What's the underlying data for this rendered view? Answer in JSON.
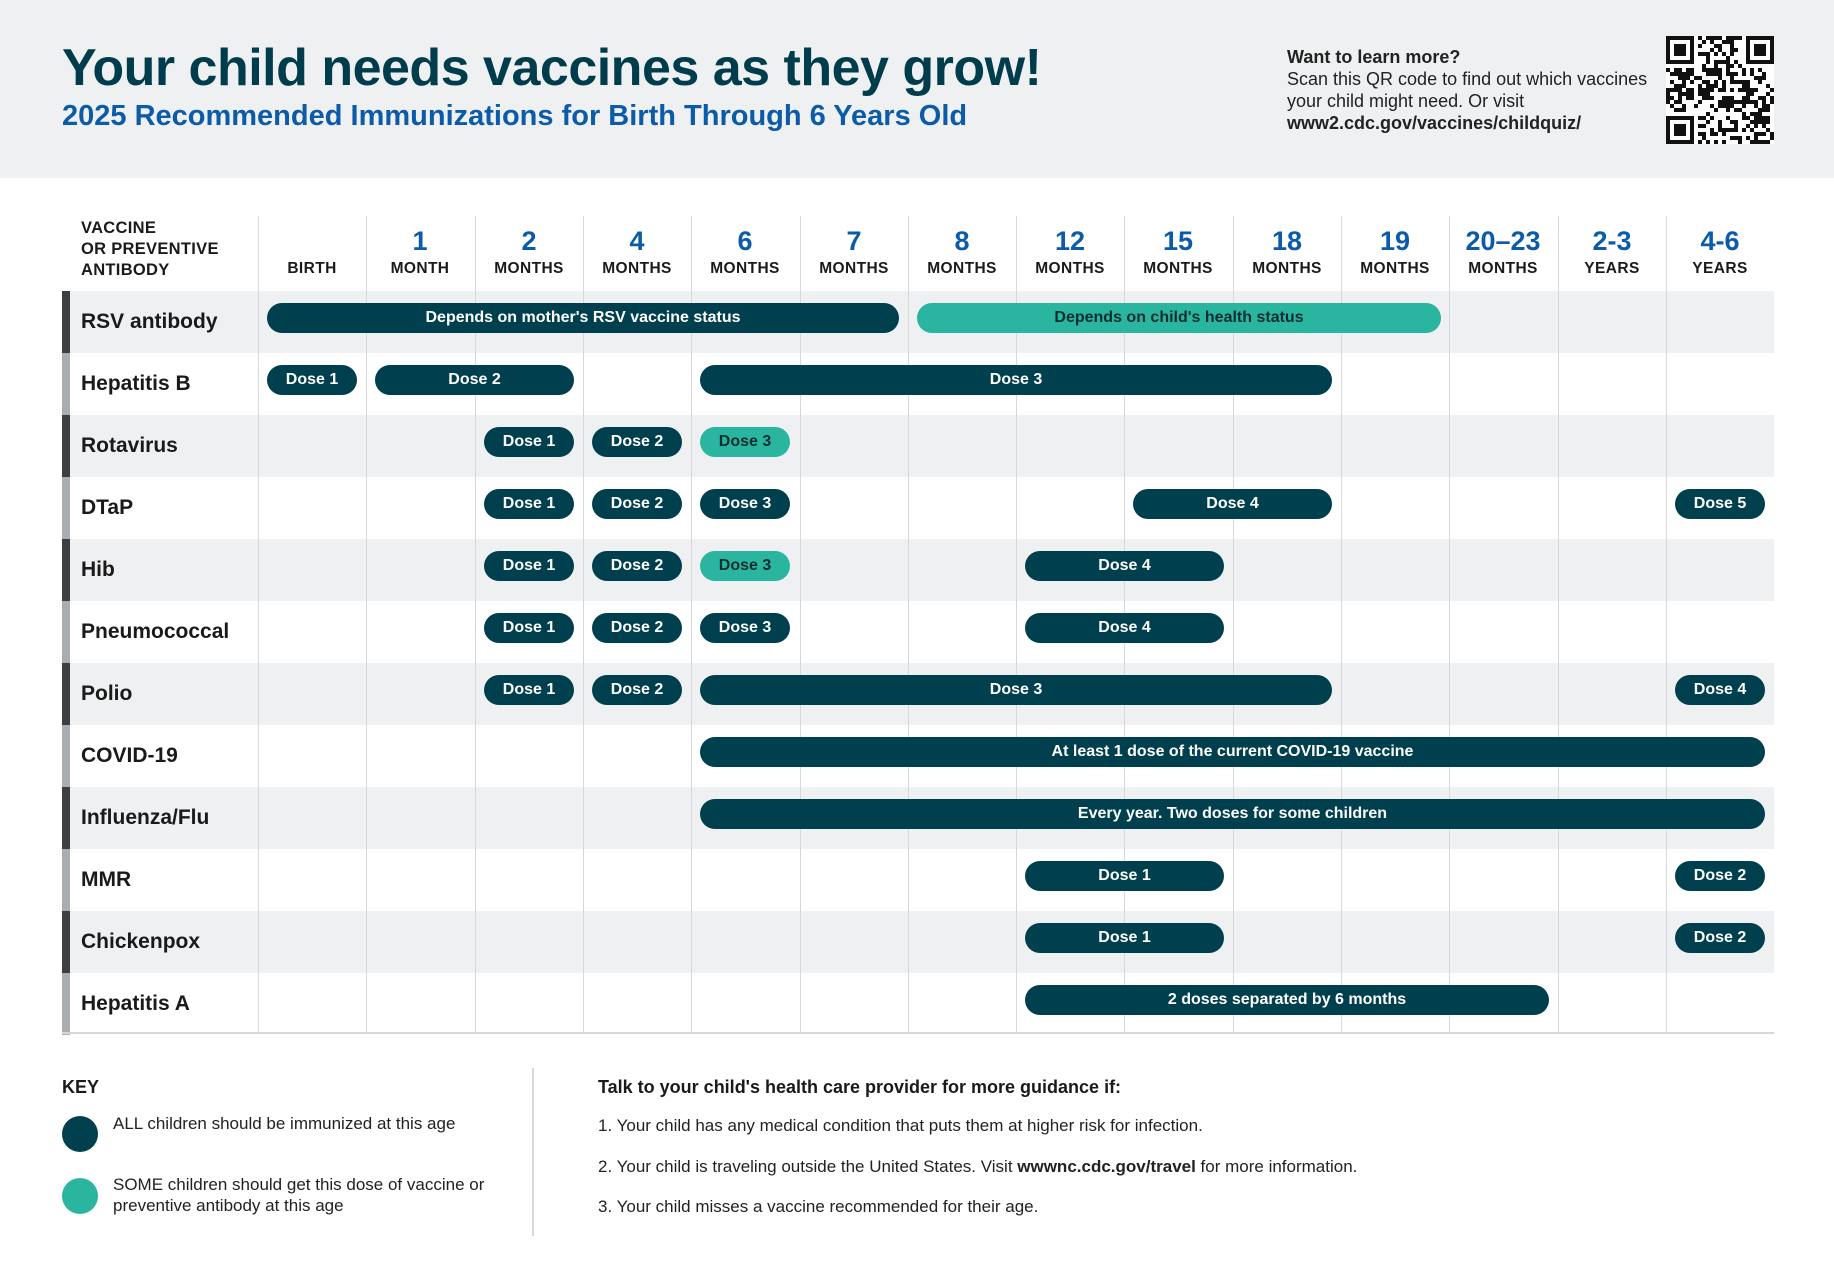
{
  "header": {
    "title": "Your child needs vaccines as they grow!",
    "subtitle": "2025 Recommended Immunizations for Birth Through 6 Years Old",
    "learn_heading": "Want to learn more?",
    "learn_text": "Scan this QR code to find out which vaccines your child might need. Or visit",
    "learn_url": "www2.cdc.gov/vaccines/childquiz/"
  },
  "table": {
    "vaccine_header": [
      "VACCINE",
      "OR PREVENTIVE",
      "ANTIBODY"
    ],
    "columns": [
      {
        "num": "",
        "unit": "BIRTH"
      },
      {
        "num": "1",
        "unit": "MONTH"
      },
      {
        "num": "2",
        "unit": "MONTHS"
      },
      {
        "num": "4",
        "unit": "MONTHS"
      },
      {
        "num": "6",
        "unit": "MONTHS"
      },
      {
        "num": "7",
        "unit": "MONTHS"
      },
      {
        "num": "8",
        "unit": "MONTHS"
      },
      {
        "num": "12",
        "unit": "MONTHS"
      },
      {
        "num": "15",
        "unit": "MONTHS"
      },
      {
        "num": "18",
        "unit": "MONTHS"
      },
      {
        "num": "19",
        "unit": "MONTHS"
      },
      {
        "num": "20–23",
        "unit": "MONTHS"
      },
      {
        "num": "2-3",
        "unit": "YEARS"
      },
      {
        "num": "4-6",
        "unit": "YEARS"
      }
    ],
    "rows": [
      {
        "name": "RSV antibody",
        "doses": [
          {
            "label": "Depends on mother's RSV vaccine status",
            "start": 0,
            "end": 5,
            "type": "all"
          },
          {
            "label": "Depends on child's health status",
            "start": 6,
            "end": 10,
            "type": "some"
          }
        ]
      },
      {
        "name": "Hepatitis B",
        "doses": [
          {
            "label": "Dose 1",
            "start": 0,
            "end": 0,
            "type": "all"
          },
          {
            "label": "Dose 2",
            "start": 1,
            "end": 2,
            "type": "all"
          },
          {
            "label": "Dose 3",
            "start": 4,
            "end": 9,
            "type": "all"
          }
        ]
      },
      {
        "name": "Rotavirus",
        "doses": [
          {
            "label": "Dose 1",
            "start": 2,
            "end": 2,
            "type": "all"
          },
          {
            "label": "Dose 2",
            "start": 3,
            "end": 3,
            "type": "all"
          },
          {
            "label": "Dose 3",
            "start": 4,
            "end": 4,
            "type": "some"
          }
        ]
      },
      {
        "name": "DTaP",
        "doses": [
          {
            "label": "Dose 1",
            "start": 2,
            "end": 2,
            "type": "all"
          },
          {
            "label": "Dose 2",
            "start": 3,
            "end": 3,
            "type": "all"
          },
          {
            "label": "Dose 3",
            "start": 4,
            "end": 4,
            "type": "all"
          },
          {
            "label": "Dose 4",
            "start": 8,
            "end": 9,
            "type": "all"
          },
          {
            "label": "Dose 5",
            "start": 13,
            "end": 13,
            "type": "all"
          }
        ]
      },
      {
        "name": "Hib",
        "doses": [
          {
            "label": "Dose 1",
            "start": 2,
            "end": 2,
            "type": "all"
          },
          {
            "label": "Dose 2",
            "start": 3,
            "end": 3,
            "type": "all"
          },
          {
            "label": "Dose 3",
            "start": 4,
            "end": 4,
            "type": "some"
          },
          {
            "label": "Dose 4",
            "start": 7,
            "end": 8,
            "type": "all"
          }
        ]
      },
      {
        "name": "Pneumococcal",
        "doses": [
          {
            "label": "Dose 1",
            "start": 2,
            "end": 2,
            "type": "all"
          },
          {
            "label": "Dose 2",
            "start": 3,
            "end": 3,
            "type": "all"
          },
          {
            "label": "Dose 3",
            "start": 4,
            "end": 4,
            "type": "all"
          },
          {
            "label": "Dose 4",
            "start": 7,
            "end": 8,
            "type": "all"
          }
        ]
      },
      {
        "name": "Polio",
        "doses": [
          {
            "label": "Dose 1",
            "start": 2,
            "end": 2,
            "type": "all"
          },
          {
            "label": "Dose 2",
            "start": 3,
            "end": 3,
            "type": "all"
          },
          {
            "label": "Dose 3",
            "start": 4,
            "end": 9,
            "type": "all"
          },
          {
            "label": "Dose 4",
            "start": 13,
            "end": 13,
            "type": "all"
          }
        ]
      },
      {
        "name": "COVID-19",
        "doses": [
          {
            "label": "At least 1 dose of the current COVID-19 vaccine",
            "start": 4,
            "end": 13,
            "type": "all"
          }
        ]
      },
      {
        "name": "Influenza/Flu",
        "doses": [
          {
            "label": "Every year. Two doses for some children",
            "start": 4,
            "end": 13,
            "type": "all"
          }
        ]
      },
      {
        "name": "MMR",
        "doses": [
          {
            "label": "Dose 1",
            "start": 7,
            "end": 8,
            "type": "all"
          },
          {
            "label": "Dose 2",
            "start": 13,
            "end": 13,
            "type": "all"
          }
        ]
      },
      {
        "name": "Chickenpox",
        "doses": [
          {
            "label": "Dose 1",
            "start": 7,
            "end": 8,
            "type": "all"
          },
          {
            "label": "Dose 2",
            "start": 13,
            "end": 13,
            "type": "all"
          }
        ]
      },
      {
        "name": "Hepatitis A",
        "doses": [
          {
            "label": "2 doses separated by 6 months",
            "start": 7,
            "end": 11,
            "type": "all"
          }
        ]
      }
    ]
  },
  "key": {
    "title": "KEY",
    "all_text": "ALL children should be immunized at this age",
    "some_text": "SOME children should get this dose of vaccine or preventive antibody at this age",
    "colors": {
      "all": "#00404e",
      "some": "#2ab5a0"
    }
  },
  "guidance": {
    "title": "Talk to your child's health care provider for more guidance if:",
    "item1": "1. Your child has any medical condition that puts them at higher risk for infection.",
    "item2_pre": "2. Your child is traveling outside the United States. Visit ",
    "item2_link": "wwwnc.cdc.gov/travel",
    "item2_post": " for more information.",
    "item3": "3. Your child misses a vaccine recommended for their age."
  }
}
